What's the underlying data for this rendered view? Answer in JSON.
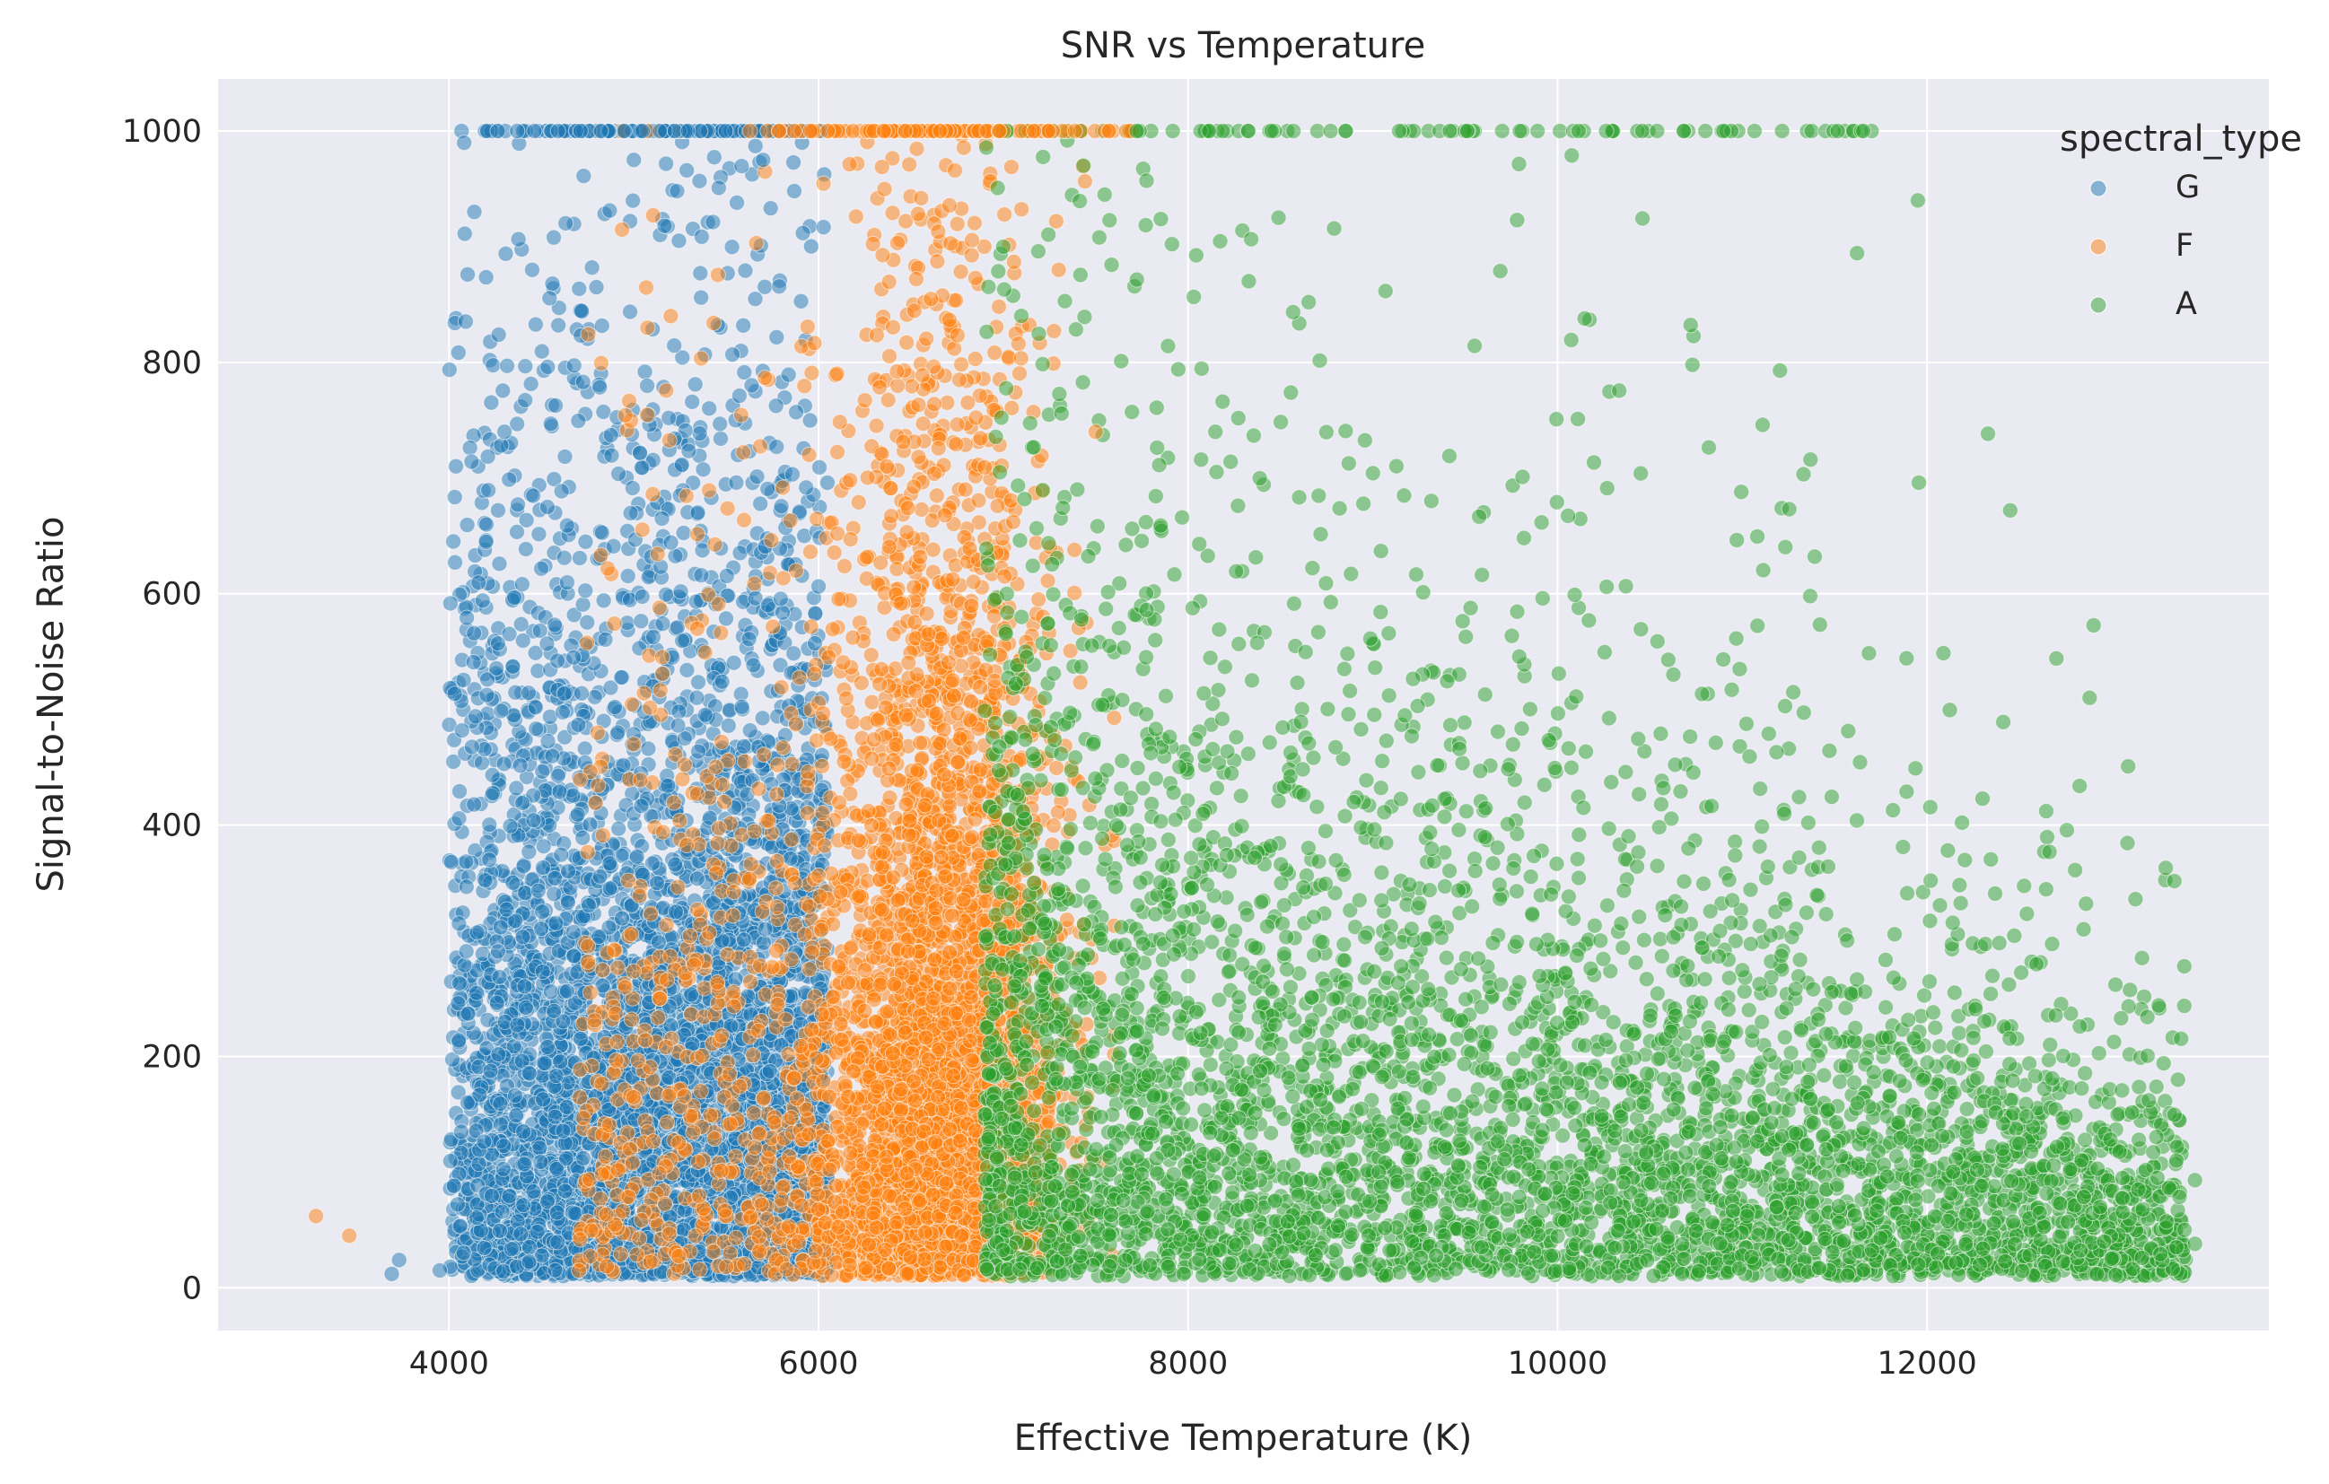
{
  "chart_data": {
    "type": "scatter",
    "title": "SNR vs Temperature",
    "xlabel": "Effective Temperature (K)",
    "ylabel": "Signal-to-Noise Ratio",
    "xlim": [
      2750,
      13850
    ],
    "ylim": [
      -37,
      1045
    ],
    "xticks": [
      4000,
      6000,
      8000,
      10000,
      12000
    ],
    "yticks": [
      0,
      200,
      400,
      600,
      800,
      1000
    ],
    "xtick_labels": [
      "4000",
      "6000",
      "8000",
      "10000",
      "12000"
    ],
    "ytick_labels": [
      "0",
      "200",
      "400",
      "600",
      "800",
      "1000"
    ],
    "grid": true,
    "background": "#EAEAF2",
    "legend": {
      "title": "spectral_type",
      "placement": "top-right",
      "entries": [
        {
          "label": "G",
          "color": "#1f77b4"
        },
        {
          "label": "F",
          "color": "#ff7f0e"
        },
        {
          "label": "A",
          "color": "#2ca02c"
        }
      ]
    },
    "marker_opacity": 0.5,
    "snr_cap": 1000,
    "series": [
      {
        "name": "G",
        "color": "#1f77b4",
        "temperature_range": [
          3660,
          6050
        ],
        "snr_range": [
          10,
          1000
        ],
        "point_count_estimate": 9000,
        "summary_points": [
          {
            "x": 3690,
            "y": 12
          },
          {
            "x": 3730,
            "y": 24
          },
          {
            "x": 3950,
            "y": 15
          },
          {
            "x": 4100,
            "y": 160
          },
          {
            "x": 4300,
            "y": 740
          },
          {
            "x": 4450,
            "y": 880
          },
          {
            "x": 4550,
            "y": 1000
          },
          {
            "x": 4800,
            "y": 1000
          },
          {
            "x": 5000,
            "y": 975
          },
          {
            "x": 5300,
            "y": 1000
          },
          {
            "x": 5700,
            "y": 975
          },
          {
            "x": 5900,
            "y": 1000
          },
          {
            "x": 6000,
            "y": 1000
          }
        ]
      },
      {
        "name": "F",
        "color": "#ff7f0e",
        "temperature_range": [
          3280,
          7600
        ],
        "snr_range": [
          10,
          1000
        ],
        "point_count_estimate": 8000,
        "summary_points": [
          {
            "x": 3280,
            "y": 62
          },
          {
            "x": 3460,
            "y": 45
          },
          {
            "x": 5000,
            "y": 470
          },
          {
            "x": 5200,
            "y": 840
          },
          {
            "x": 5600,
            "y": 1000
          },
          {
            "x": 6000,
            "y": 1000
          },
          {
            "x": 6500,
            "y": 1000
          },
          {
            "x": 7000,
            "y": 1000
          },
          {
            "x": 7300,
            "y": 880
          },
          {
            "x": 7500,
            "y": 740
          }
        ]
      },
      {
        "name": "A",
        "color": "#2ca02c",
        "temperature_range": [
          6900,
          13500
        ],
        "snr_range": [
          10,
          1000
        ],
        "point_count_estimate": 9000,
        "summary_points": [
          {
            "x": 7000,
            "y": 900
          },
          {
            "x": 7800,
            "y": 1000
          },
          {
            "x": 8700,
            "y": 1000
          },
          {
            "x": 9200,
            "y": 1000
          },
          {
            "x": 9700,
            "y": 1000
          },
          {
            "x": 10300,
            "y": 1000
          },
          {
            "x": 10800,
            "y": 1000
          },
          {
            "x": 11700,
            "y": 1000
          },
          {
            "x": 11950,
            "y": 940
          },
          {
            "x": 12450,
            "y": 672
          },
          {
            "x": 12700,
            "y": 544
          },
          {
            "x": 12880,
            "y": 510
          },
          {
            "x": 13050,
            "y": 233
          },
          {
            "x": 13200,
            "y": 162
          },
          {
            "x": 13450,
            "y": 93
          },
          {
            "x": 13350,
            "y": 35
          },
          {
            "x": 13450,
            "y": 38
          }
        ]
      }
    ]
  }
}
